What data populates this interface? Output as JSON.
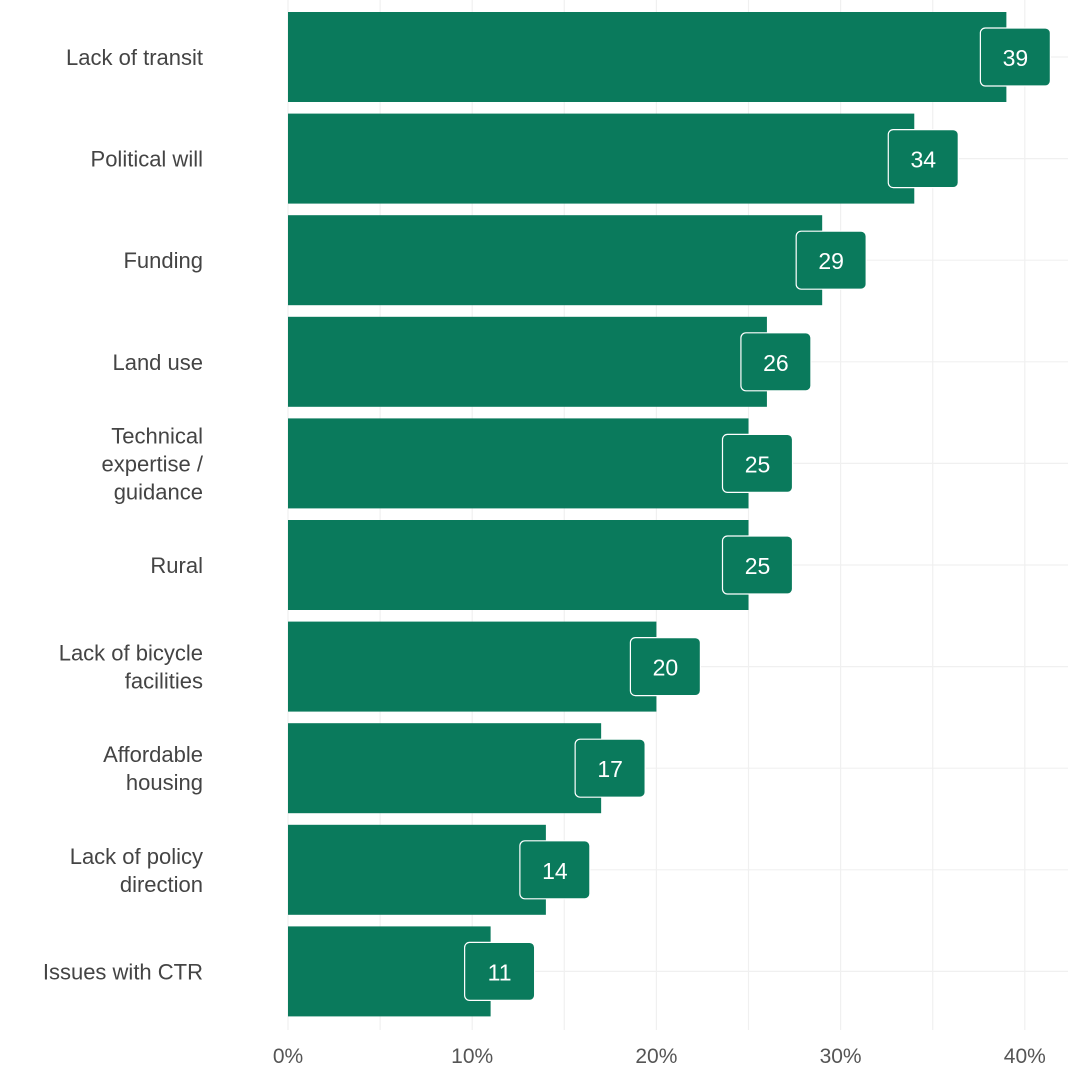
{
  "chart_data": {
    "type": "bar",
    "orientation": "horizontal",
    "title": "",
    "xlabel": "",
    "ylabel": "",
    "categories": [
      [
        "Lack of transit"
      ],
      [
        "Political will"
      ],
      [
        "Funding"
      ],
      [
        "Land use"
      ],
      [
        "Technical",
        "expertise /",
        "guidance"
      ],
      [
        "Rural"
      ],
      [
        "Lack of bicycle",
        "facilities"
      ],
      [
        "Affordable",
        "housing"
      ],
      [
        "Lack of policy",
        "direction"
      ],
      [
        "Issues with CTR"
      ]
    ],
    "values": [
      39,
      34,
      29,
      26,
      25,
      25,
      20,
      17,
      14,
      11
    ],
    "data_labels": [
      "39",
      "34",
      "29",
      "26",
      "25",
      "25",
      "20",
      "17",
      "14",
      "11"
    ],
    "xlim": [
      0,
      42
    ],
    "x_ticks": [
      0,
      10,
      20,
      30,
      40
    ],
    "x_tick_labels": [
      "0%",
      "10%",
      "20%",
      "30%",
      "40%"
    ],
    "grid": true,
    "legend": "none",
    "bar_color": "#0a7a5c",
    "label_box_border": "#ffffff"
  }
}
